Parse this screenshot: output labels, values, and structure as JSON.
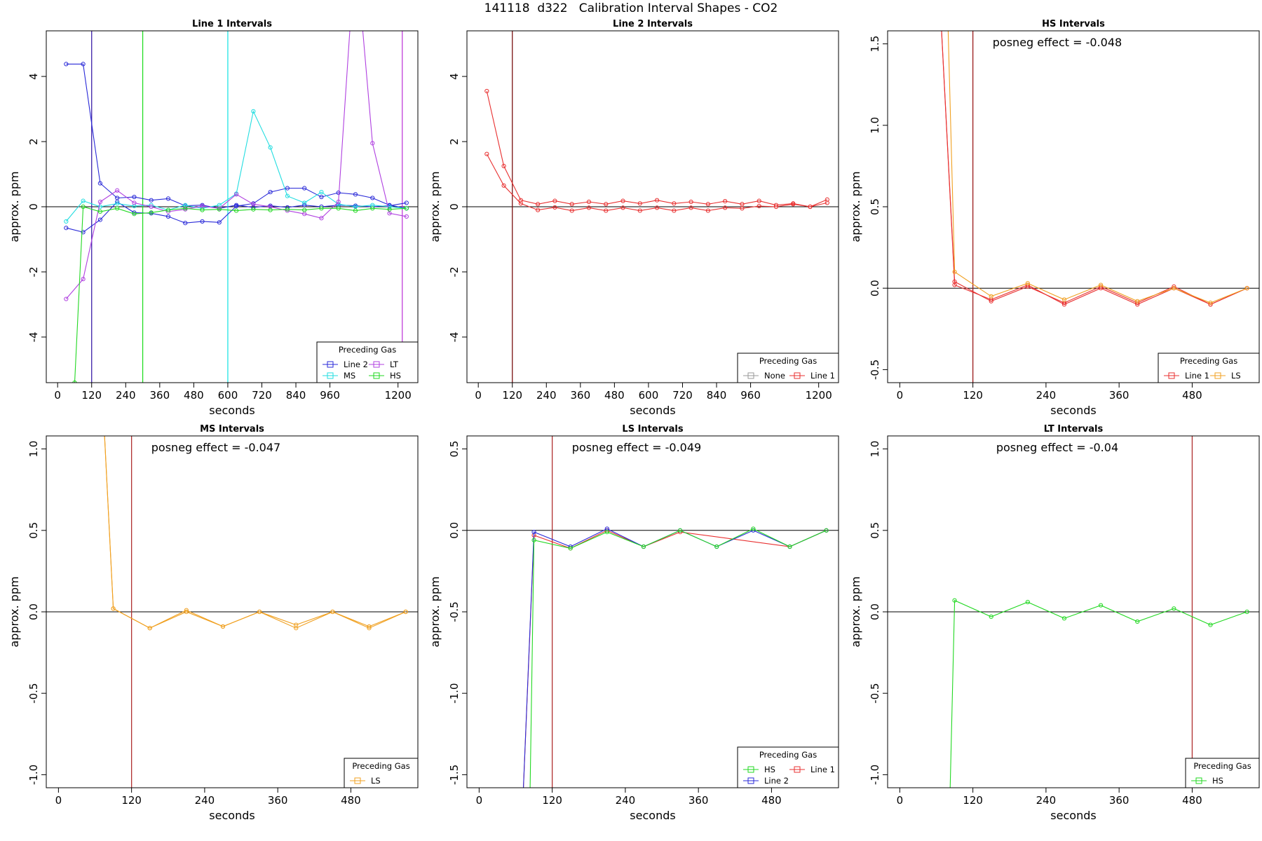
{
  "figure_title": "141118  d322   Calibration Interval Shapes - CO2",
  "chart_data": [
    {
      "type": "line",
      "title": "Line 1 Intervals",
      "xlabel": "seconds",
      "ylabel": "approx. ppm",
      "xlim": [
        -40,
        1270
      ],
      "ylim": [
        -5.4,
        5.4
      ],
      "xticks": [
        0,
        120,
        240,
        360,
        480,
        600,
        720,
        840,
        960,
        1200
      ],
      "yticks": [
        -4,
        -2,
        0,
        2,
        4
      ],
      "hline": 0,
      "vlines": [
        {
          "x": 120,
          "color": "#3b1fa8"
        },
        {
          "x": 300,
          "color": "#22dd22"
        },
        {
          "x": 600,
          "color": "#22e5e5"
        },
        {
          "x": 1215,
          "color": "#c040d8"
        }
      ],
      "legend": {
        "title": "Preceding Gas",
        "position": "bottom-right",
        "columns": 2,
        "entries": [
          {
            "label": "Line 2",
            "color": "#2a2ad8"
          },
          {
            "label": "LT",
            "color": "#b040e0"
          },
          {
            "label": "MS",
            "color": "#22dde0"
          },
          {
            "label": "HS",
            "color": "#22d822"
          }
        ]
      },
      "series": [
        {
          "name": "Line 2",
          "color": "#2a2ad8",
          "x": [
            30,
            90,
            150,
            210,
            270,
            330,
            390,
            450,
            510,
            570,
            630,
            690,
            750,
            810,
            870,
            930,
            990,
            1050,
            1110,
            1170,
            1230
          ],
          "y": [
            4.38,
            4.38,
            0.72,
            0.27,
            0.3,
            0.2,
            0.25,
            0.03,
            0.05,
            -0.05,
            0.05,
            -0.02,
            0.03,
            -0.02,
            0.05,
            0.0,
            0.05,
            0.03,
            0.0,
            0.03,
            0.12
          ]
        },
        {
          "name": "Line 2",
          "color": "#2a2ad8",
          "x": [
            30,
            90,
            150,
            210,
            270,
            330,
            390,
            450,
            510,
            570,
            630,
            690,
            750,
            810,
            870,
            930,
            990,
            1050,
            1110,
            1170,
            1230
          ],
          "y": [
            -0.65,
            -0.78,
            -0.4,
            0.15,
            -0.18,
            -0.2,
            -0.3,
            -0.5,
            -0.45,
            -0.48,
            0.02,
            0.1,
            0.45,
            0.57,
            0.57,
            0.3,
            0.43,
            0.38,
            0.27,
            0.05,
            -0.05
          ]
        },
        {
          "name": "MS",
          "color": "#22dde0",
          "x": [
            30,
            90,
            150,
            210,
            270,
            330,
            390,
            450,
            510,
            570,
            630,
            690,
            750,
            810,
            870,
            930,
            990,
            1050,
            1110,
            1170,
            1230
          ],
          "y": [
            -0.45,
            0.18,
            0.0,
            0.1,
            0.02,
            0.05,
            -0.1,
            0.05,
            -0.05,
            0.05,
            0.4,
            2.93,
            1.82,
            0.33,
            0.12,
            0.45,
            0.08,
            0.0,
            0.05,
            0.0,
            -0.05
          ]
        },
        {
          "name": "LT",
          "color": "#b040e0",
          "x": [
            30,
            90,
            150,
            210,
            270,
            330,
            390,
            450,
            510,
            570,
            630,
            690,
            750,
            810,
            870,
            930,
            990,
            1050,
            1110,
            1170,
            1230
          ],
          "y": [
            -2.83,
            -2.22,
            0.15,
            0.5,
            0.12,
            0.0,
            -0.15,
            -0.08,
            0.02,
            -0.05,
            0.38,
            0.08,
            0.0,
            -0.12,
            -0.22,
            -0.35,
            0.15,
            8.0,
            1.95,
            -0.2,
            -0.3
          ]
        },
        {
          "name": "HS",
          "color": "#22d822",
          "x": [
            30,
            60,
            90,
            150,
            210,
            270,
            330,
            390,
            450,
            510,
            570,
            630,
            690,
            750,
            810,
            870,
            930,
            990,
            1050,
            1110,
            1170,
            1230
          ],
          "y": [
            -9.0,
            -5.4,
            0.0,
            -0.15,
            -0.05,
            -0.22,
            -0.18,
            -0.1,
            -0.05,
            -0.1,
            -0.08,
            -0.12,
            -0.08,
            -0.1,
            -0.08,
            -0.1,
            -0.05,
            -0.05,
            -0.12,
            -0.05,
            -0.08,
            -0.05
          ]
        }
      ]
    },
    {
      "type": "line",
      "title": "Line 2 Intervals",
      "xlabel": "seconds",
      "ylabel": "approx. ppm",
      "xlim": [
        -40,
        1270
      ],
      "ylim": [
        -5.4,
        5.4
      ],
      "xticks": [
        0,
        120,
        240,
        360,
        480,
        600,
        720,
        840,
        960,
        1200
      ],
      "yticks": [
        -4,
        -2,
        0,
        2,
        4
      ],
      "hline": 0,
      "vlines": [
        {
          "x": 120,
          "color": "#7a1010"
        }
      ],
      "legend": {
        "title": "Preceding Gas",
        "position": "bottom-right",
        "columns": 2,
        "entries": [
          {
            "label": "None",
            "color": "#999999"
          },
          {
            "label": "Line 1",
            "color": "#e83030"
          }
        ]
      },
      "series": [
        {
          "name": "Line 1",
          "color": "#e83030",
          "x": [
            30,
            90,
            150,
            210,
            270,
            330,
            390,
            450,
            510,
            570,
            630,
            690,
            750,
            810,
            870,
            930,
            990,
            1050,
            1110,
            1170,
            1230
          ],
          "y": [
            3.55,
            1.25,
            0.2,
            0.08,
            0.18,
            0.08,
            0.15,
            0.08,
            0.18,
            0.1,
            0.2,
            0.1,
            0.15,
            0.08,
            0.17,
            0.08,
            0.18,
            0.05,
            0.1,
            0.0,
            0.22
          ]
        },
        {
          "name": "Line 1",
          "color": "#e83030",
          "x": [
            30,
            90,
            150,
            210,
            270,
            330,
            390,
            450,
            510,
            570,
            630,
            690,
            750,
            810,
            870,
            930,
            990,
            1050,
            1110,
            1170,
            1230
          ],
          "y": [
            1.62,
            0.65,
            0.1,
            -0.1,
            -0.02,
            -0.12,
            -0.03,
            -0.12,
            -0.03,
            -0.12,
            -0.03,
            -0.12,
            -0.03,
            -0.12,
            -0.03,
            -0.05,
            0.02,
            0.0,
            0.08,
            0.0,
            0.12
          ]
        }
      ]
    },
    {
      "type": "line",
      "title": "HS Intervals",
      "xlabel": "seconds",
      "ylabel": "approx. ppm",
      "annotation": "posneg effect = -0.048",
      "xlim": [
        -20,
        590
      ],
      "ylim": [
        -0.58,
        1.58
      ],
      "xticks": [
        0,
        120,
        240,
        360,
        480
      ],
      "yticks": [
        -0.5,
        0.0,
        0.5,
        1.0,
        1.5
      ],
      "hline": 0,
      "vlines": [
        {
          "x": 120,
          "color": "#9b1a1a"
        }
      ],
      "legend": {
        "title": "Preceding Gas",
        "position": "bottom-right",
        "columns": 2,
        "entries": [
          {
            "label": "Line 1",
            "color": "#e83030"
          },
          {
            "label": "LS",
            "color": "#f0a020"
          }
        ]
      },
      "series": [
        {
          "name": "Line 1",
          "color": "#e83030",
          "x": [
            60,
            90,
            150,
            210,
            270,
            330,
            390,
            450,
            510,
            570
          ],
          "y": [
            2.2,
            0.02,
            -0.07,
            0.02,
            -0.1,
            0.0,
            -0.1,
            0.0,
            -0.1,
            0.0
          ]
        },
        {
          "name": "Line 1",
          "color": "#e83030",
          "x": [
            60,
            90,
            150,
            210,
            270,
            330,
            390,
            450,
            510,
            570
          ],
          "y": [
            2.2,
            0.04,
            -0.08,
            0.01,
            -0.09,
            0.01,
            -0.09,
            0.01,
            -0.1,
            0.0
          ]
        },
        {
          "name": "LS",
          "color": "#f0a020",
          "x": [
            75,
            90,
            150,
            210,
            270,
            330,
            390,
            450,
            510,
            570
          ],
          "y": [
            2.2,
            0.1,
            -0.05,
            0.03,
            -0.07,
            0.02,
            -0.08,
            0.0,
            -0.09,
            0.0
          ]
        }
      ]
    },
    {
      "type": "line",
      "title": "MS Intervals",
      "xlabel": "seconds",
      "ylabel": "approx. ppm",
      "annotation": "posneg effect = -0.047",
      "xlim": [
        -20,
        590
      ],
      "ylim": [
        -1.08,
        1.08
      ],
      "xticks": [
        0,
        120,
        240,
        360,
        480
      ],
      "yticks": [
        -1.0,
        -0.5,
        0.0,
        0.5,
        1.0
      ],
      "hline": 0,
      "vlines": [
        {
          "x": 120,
          "color": "#b03030"
        }
      ],
      "legend": {
        "title": "Preceding Gas",
        "position": "bottom-right",
        "columns": 1,
        "entries": [
          {
            "label": "LS",
            "color": "#f0a020"
          }
        ]
      },
      "series": [
        {
          "name": "LS",
          "color": "#f0a020",
          "x": [
            70,
            90,
            150,
            210,
            270,
            330,
            390,
            450,
            510,
            570
          ],
          "y": [
            1.5,
            0.02,
            -0.1,
            0.0,
            -0.09,
            0.0,
            -0.08,
            0.0,
            -0.09,
            0.0
          ]
        },
        {
          "name": "LS",
          "color": "#f0a020",
          "x": [
            70,
            90,
            150,
            210,
            270,
            330,
            390,
            450,
            510,
            570
          ],
          "y": [
            1.5,
            0.02,
            -0.1,
            0.01,
            -0.09,
            0.0,
            -0.1,
            0.0,
            -0.1,
            0.0
          ]
        }
      ]
    },
    {
      "type": "line",
      "title": "LS Intervals",
      "xlabel": "seconds",
      "ylabel": "approx. ppm",
      "annotation": "posneg effect = -0.049",
      "xlim": [
        -20,
        590
      ],
      "ylim": [
        -1.58,
        0.58
      ],
      "xticks": [
        0,
        120,
        240,
        360,
        480
      ],
      "yticks": [
        -1.5,
        -1.0,
        -0.5,
        0.0,
        0.5
      ],
      "hline": 0,
      "vlines": [
        {
          "x": 120,
          "color": "#b03030"
        }
      ],
      "legend": {
        "title": "Preceding Gas",
        "position": "bottom-right",
        "columns": 2,
        "entries": [
          {
            "label": "HS",
            "color": "#22d822"
          },
          {
            "label": "Line 1",
            "color": "#e83030"
          },
          {
            "label": "Line 2",
            "color": "#2a2ad8"
          }
        ]
      },
      "series": [
        {
          "name": "Line 1",
          "color": "#e83030",
          "x": [
            68,
            90,
            150,
            210,
            270,
            330,
            510,
            570
          ],
          "y": [
            -2.0,
            -0.03,
            -0.11,
            0.0,
            -0.1,
            -0.01,
            -0.1,
            0.0
          ]
        },
        {
          "name": "Line 2",
          "color": "#2a2ad8",
          "x": [
            68,
            90,
            150,
            210,
            270,
            330,
            390,
            450,
            510,
            570
          ],
          "y": [
            -2.0,
            -0.01,
            -0.1,
            0.01,
            -0.1,
            0.0,
            -0.1,
            0.0,
            -0.1,
            0.0
          ]
        },
        {
          "name": "HS",
          "color": "#22d822",
          "x": [
            82,
            90,
            150,
            210,
            270,
            330,
            390,
            450,
            510,
            570
          ],
          "y": [
            -2.0,
            -0.06,
            -0.11,
            -0.01,
            -0.1,
            0.0,
            -0.1,
            0.01,
            -0.1,
            0.0
          ]
        }
      ]
    },
    {
      "type": "line",
      "title": "LT Intervals",
      "xlabel": "seconds",
      "ylabel": "approx. ppm",
      "annotation": "posneg effect = -0.04",
      "xlim": [
        -20,
        590
      ],
      "ylim": [
        -1.08,
        1.08
      ],
      "xticks": [
        0,
        120,
        240,
        360,
        480
      ],
      "yticks": [
        -1.0,
        -0.5,
        0.0,
        0.5,
        1.0
      ],
      "hline": 0,
      "vlines": [
        {
          "x": 480,
          "color": "#b03030"
        }
      ],
      "legend": {
        "title": "Preceding Gas",
        "position": "bottom-right",
        "columns": 1,
        "entries": [
          {
            "label": "HS",
            "color": "#22d822"
          }
        ]
      },
      "series": [
        {
          "name": "HS",
          "color": "#22d822",
          "x": [
            80,
            90,
            150,
            210,
            270,
            330,
            390,
            450,
            510,
            570
          ],
          "y": [
            -1.5,
            0.07,
            -0.03,
            0.06,
            -0.04,
            0.04,
            -0.06,
            0.02,
            -0.08,
            0.0
          ]
        }
      ]
    }
  ]
}
